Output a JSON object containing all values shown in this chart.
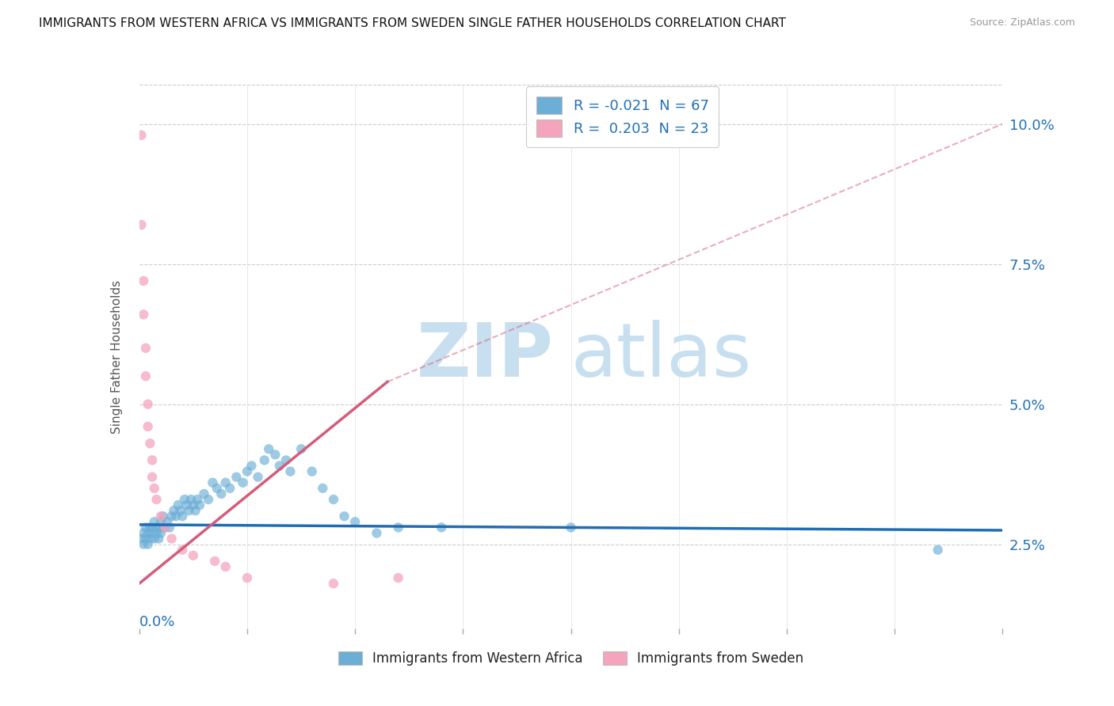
{
  "title": "IMMIGRANTS FROM WESTERN AFRICA VS IMMIGRANTS FROM SWEDEN SINGLE FATHER HOUSEHOLDS CORRELATION CHART",
  "source": "Source: ZipAtlas.com",
  "ylabel": "Single Father Households",
  "yticks": [
    "2.5%",
    "5.0%",
    "7.5%",
    "10.0%"
  ],
  "ytick_vals": [
    0.025,
    0.05,
    0.075,
    0.1
  ],
  "xlim": [
    0.0,
    0.4
  ],
  "ylim": [
    0.01,
    0.107
  ],
  "legend_blue_label": "R = -0.021  N = 67",
  "legend_pink_label": "R =  0.203  N = 23",
  "blue_color": "#6baed6",
  "pink_color": "#f4a5bc",
  "trendline_blue_color": "#1f6db5",
  "trendline_pink_color": "#d45c7a",
  "watermark_zip": "ZIP",
  "watermark_atlas": "atlas",
  "blue_scatter": [
    [
      0.001,
      0.026
    ],
    [
      0.002,
      0.025
    ],
    [
      0.002,
      0.027
    ],
    [
      0.003,
      0.026
    ],
    [
      0.003,
      0.028
    ],
    [
      0.004,
      0.027
    ],
    [
      0.004,
      0.025
    ],
    [
      0.005,
      0.026
    ],
    [
      0.005,
      0.028
    ],
    [
      0.006,
      0.027
    ],
    [
      0.006,
      0.028
    ],
    [
      0.007,
      0.026
    ],
    [
      0.007,
      0.029
    ],
    [
      0.008,
      0.027
    ],
    [
      0.008,
      0.028
    ],
    [
      0.009,
      0.026
    ],
    [
      0.009,
      0.028
    ],
    [
      0.01,
      0.027
    ],
    [
      0.01,
      0.029
    ],
    [
      0.011,
      0.028
    ],
    [
      0.011,
      0.03
    ],
    [
      0.012,
      0.028
    ],
    [
      0.013,
      0.029
    ],
    [
      0.014,
      0.028
    ],
    [
      0.015,
      0.03
    ],
    [
      0.016,
      0.031
    ],
    [
      0.017,
      0.03
    ],
    [
      0.018,
      0.032
    ],
    [
      0.019,
      0.031
    ],
    [
      0.02,
      0.03
    ],
    [
      0.021,
      0.033
    ],
    [
      0.022,
      0.032
    ],
    [
      0.023,
      0.031
    ],
    [
      0.024,
      0.033
    ],
    [
      0.025,
      0.032
    ],
    [
      0.026,
      0.031
    ],
    [
      0.027,
      0.033
    ],
    [
      0.028,
      0.032
    ],
    [
      0.03,
      0.034
    ],
    [
      0.032,
      0.033
    ],
    [
      0.034,
      0.036
    ],
    [
      0.036,
      0.035
    ],
    [
      0.038,
      0.034
    ],
    [
      0.04,
      0.036
    ],
    [
      0.042,
      0.035
    ],
    [
      0.045,
      0.037
    ],
    [
      0.048,
      0.036
    ],
    [
      0.05,
      0.038
    ],
    [
      0.052,
      0.039
    ],
    [
      0.055,
      0.037
    ],
    [
      0.058,
      0.04
    ],
    [
      0.06,
      0.042
    ],
    [
      0.063,
      0.041
    ],
    [
      0.065,
      0.039
    ],
    [
      0.068,
      0.04
    ],
    [
      0.07,
      0.038
    ],
    [
      0.075,
      0.042
    ],
    [
      0.08,
      0.038
    ],
    [
      0.085,
      0.035
    ],
    [
      0.09,
      0.033
    ],
    [
      0.095,
      0.03
    ],
    [
      0.1,
      0.029
    ],
    [
      0.11,
      0.027
    ],
    [
      0.12,
      0.028
    ],
    [
      0.14,
      0.028
    ],
    [
      0.2,
      0.028
    ],
    [
      0.37,
      0.024
    ]
  ],
  "pink_scatter": [
    [
      0.001,
      0.098
    ],
    [
      0.001,
      0.082
    ],
    [
      0.002,
      0.072
    ],
    [
      0.002,
      0.066
    ],
    [
      0.003,
      0.06
    ],
    [
      0.003,
      0.055
    ],
    [
      0.004,
      0.05
    ],
    [
      0.004,
      0.046
    ],
    [
      0.005,
      0.043
    ],
    [
      0.006,
      0.04
    ],
    [
      0.006,
      0.037
    ],
    [
      0.007,
      0.035
    ],
    [
      0.008,
      0.033
    ],
    [
      0.01,
      0.03
    ],
    [
      0.012,
      0.028
    ],
    [
      0.015,
      0.026
    ],
    [
      0.02,
      0.024
    ],
    [
      0.025,
      0.023
    ],
    [
      0.035,
      0.022
    ],
    [
      0.04,
      0.021
    ],
    [
      0.05,
      0.019
    ],
    [
      0.09,
      0.018
    ],
    [
      0.12,
      0.019
    ]
  ],
  "blue_trend_x": [
    0.0,
    0.4
  ],
  "blue_trend_y": [
    0.0285,
    0.0275
  ],
  "pink_trend_x": [
    0.0,
    0.4
  ],
  "pink_trend_y": [
    0.018,
    0.1
  ]
}
